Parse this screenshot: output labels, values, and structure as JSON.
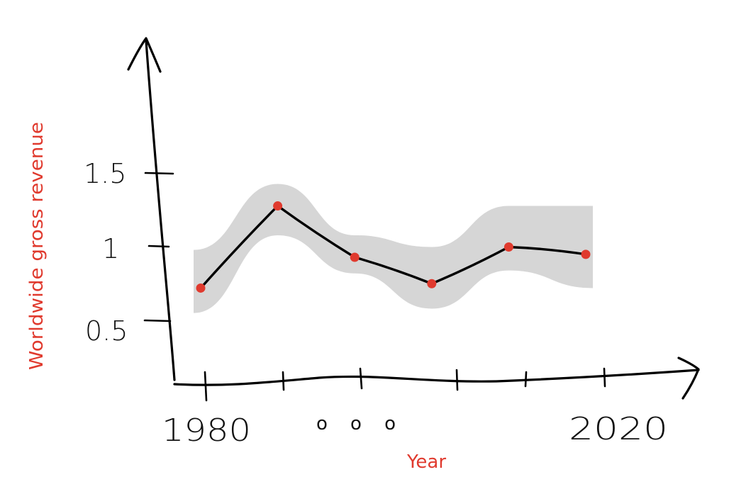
{
  "chart_data": {
    "type": "line",
    "style": "hand-drawn sketch",
    "xlabel": "Year",
    "ylabel": "Worldwide gross revenue",
    "x_tick_labels": [
      "1980",
      "2020"
    ],
    "x_ellipsis": "o o o",
    "y_ticks": [
      0.5,
      1,
      1.5
    ],
    "y_tick_labels": [
      "0.5",
      "1",
      "1.5"
    ],
    "x": [
      1980,
      1988,
      1996,
      2004,
      2012,
      2020
    ],
    "values": [
      0.72,
      1.28,
      0.93,
      0.75,
      1.0,
      0.95
    ],
    "band_lower": [
      0.55,
      1.08,
      0.82,
      0.58,
      0.84,
      0.72
    ],
    "band_upper": [
      0.98,
      1.43,
      1.08,
      1.0,
      1.28,
      1.28
    ],
    "xlim": [
      1980,
      2020
    ],
    "ylim": [
      0.5,
      1.5
    ],
    "grid": false,
    "legend": "none",
    "colors": {
      "line": "#000000",
      "points": "#e03a2e",
      "band": "#d6d6d6",
      "labels": "#e03a2e",
      "axes": "#000000"
    }
  }
}
